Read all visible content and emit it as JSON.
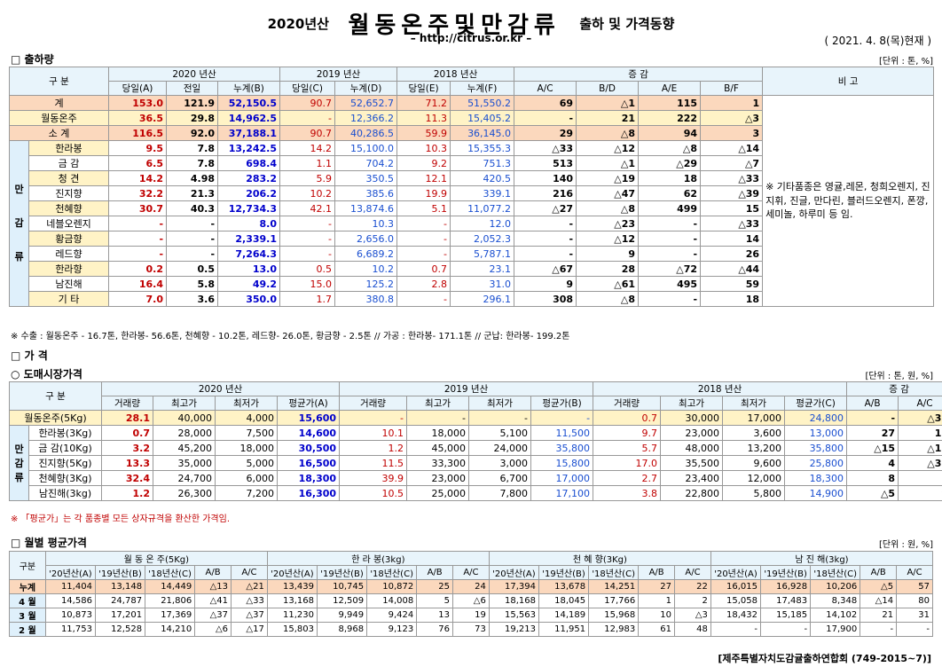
{
  "header": {
    "year": "2020년산",
    "title": "월동온주및만감류",
    "subtitle": "출하 및 가격동향",
    "url": "– http://citrus.or.kr –",
    "date": "( 2021. 4. 8(목)현재 )"
  },
  "s1": {
    "title": "□ 출하량",
    "unit": "[단위 : 톤, %]",
    "h": {
      "gubun": "구 분",
      "y2020": "2020 년산",
      "y2019": "2019 년산",
      "y2018": "2018 년산",
      "inc": "증 감",
      "bigo": "비 고",
      "c": [
        "당일(A)",
        "전일",
        "누계(B)",
        "당일(C)",
        "누계(D)",
        "당일(E)",
        "누계(F)",
        "A/C",
        "B/D",
        "A/E",
        "B/F"
      ]
    },
    "rows": [
      [
        "계",
        "153.0",
        "121.9",
        "52,150.5",
        "90.7",
        "52,652.7",
        "71.2",
        "51,550.2",
        "69",
        "△1",
        "115",
        "1"
      ],
      [
        "월동온주",
        "36.5",
        "29.8",
        "14,962.5",
        "-",
        "12,366.2",
        "11.3",
        "15,405.2",
        "-",
        "21",
        "222",
        "△3"
      ],
      [
        "소 계",
        "116.5",
        "92.0",
        "37,188.1",
        "90.7",
        "40,286.5",
        "59.9",
        "36,145.0",
        "29",
        "△8",
        "94",
        "3"
      ],
      [
        "한라봉",
        "9.5",
        "7.8",
        "13,242.5",
        "14.2",
        "15,100.0",
        "10.3",
        "15,355.3",
        "△33",
        "△12",
        "△8",
        "△14"
      ],
      [
        "금 감",
        "6.5",
        "7.8",
        "698.4",
        "1.1",
        "704.2",
        "9.2",
        "751.3",
        "513",
        "△1",
        "△29",
        "△7"
      ],
      [
        "청 견",
        "14.2",
        "4.98",
        "283.2",
        "5.9",
        "350.5",
        "12.1",
        "420.5",
        "140",
        "△19",
        "18",
        "△33"
      ],
      [
        "진지향",
        "32.2",
        "21.3",
        "206.2",
        "10.2",
        "385.6",
        "19.9",
        "339.1",
        "216",
        "△47",
        "62",
        "△39"
      ],
      [
        "천혜향",
        "30.7",
        "40.3",
        "12,734.3",
        "42.1",
        "13,874.6",
        "5.1",
        "11,077.2",
        "△27",
        "△8",
        "499",
        "15"
      ],
      [
        "네블오렌지",
        "-",
        "-",
        "8.0",
        "-",
        "10.3",
        "-",
        "12.0",
        "-",
        "△23",
        "-",
        "△33"
      ],
      [
        "황금향",
        "-",
        "-",
        "2,339.1",
        "-",
        "2,656.0",
        "-",
        "2,052.3",
        "-",
        "△12",
        "-",
        "14"
      ],
      [
        "레드향",
        "-",
        "-",
        "7,264.3",
        "-",
        "6,689.2",
        "-",
        "5,787.1",
        "-",
        "9",
        "-",
        "26"
      ],
      [
        "한라향",
        "0.2",
        "0.5",
        "13.0",
        "0.5",
        "10.2",
        "0.7",
        "23.1",
        "△67",
        "28",
        "△72",
        "△44"
      ],
      [
        "남진해",
        "16.4",
        "5.8",
        "49.2",
        "15.0",
        "125.2",
        "2.8",
        "31.0",
        "9",
        "△61",
        "495",
        "59"
      ],
      [
        "기 타",
        "7.0",
        "3.6",
        "350.0",
        "1.7",
        "380.8",
        "-",
        "296.1",
        "308",
        "△8",
        "-",
        "18"
      ]
    ],
    "group": [
      "만",
      "감",
      "류"
    ],
    "remark": "※ 기타품종은 영귤,레몬, 청희오렌지, 진지휘, 진글, 만다린, 블러드오렌지, 폰깡,세미놀, 하루미 등 임.",
    "note": "※ 수출 : 월동온주 - 16.7톤, 한라봉- 56.6톤, 천혜향 - 10.2톤, 레드향- 26.0톤, 황금향 - 2.5톤  // 가공 : 한라봉- 171.1톤 // 군납: 한라봉- 199.2톤"
  },
  "s2": {
    "title1": "□ 가   격",
    "title2": "○ 도매시장가격",
    "unit": "[단위 : 톤, 원, %]",
    "h": {
      "gubun": "구 분",
      "y2020": "2020 년산",
      "y2019": "2019 년산",
      "y2018": "2018 년산",
      "inc": "증 감",
      "c": [
        "거래량",
        "최고가",
        "최저가",
        "평균가(A)",
        "거래량",
        "최고가",
        "최저가",
        "평균가(B)",
        "거래량",
        "최고가",
        "최저가",
        "평균가(C)",
        "A/B",
        "A/C"
      ]
    },
    "rows": [
      [
        "월동온주(5Kg)",
        "28.1",
        "40,000",
        "4,000",
        "15,600",
        "-",
        "-",
        "-",
        "-",
        "0.7",
        "30,000",
        "17,000",
        "24,800",
        "-",
        "△37"
      ],
      [
        "한라봉(3Kg)",
        "0.7",
        "28,000",
        "7,500",
        "14,600",
        "10.1",
        "18,000",
        "5,100",
        "11,500",
        "9.7",
        "23,000",
        "3,600",
        "13,000",
        "27",
        "12"
      ],
      [
        "금 감(10Kg)",
        "3.2",
        "45,200",
        "18,000",
        "30,500",
        "1.2",
        "45,000",
        "24,000",
        "35,800",
        "5.7",
        "48,000",
        "13,200",
        "35,800",
        "△15",
        "△15"
      ],
      [
        "진지향(5Kg)",
        "13.3",
        "35,000",
        "5,000",
        "16,500",
        "11.5",
        "33,300",
        "3,000",
        "15,800",
        "17.0",
        "35,500",
        "9,600",
        "25,800",
        "4",
        "△36"
      ],
      [
        "천혜향(3Kg)",
        "32.4",
        "24,700",
        "6,000",
        "18,300",
        "39.9",
        "23,000",
        "6,700",
        "17,000",
        "2.7",
        "23,400",
        "12,000",
        "18,300",
        "8",
        "-"
      ],
      [
        "남진해(3kg)",
        "1.2",
        "26,300",
        "7,200",
        "16,300",
        "10.5",
        "25,000",
        "7,800",
        "17,100",
        "3.8",
        "22,800",
        "5,800",
        "14,900",
        "△5",
        "9"
      ]
    ],
    "group": [
      "만",
      "감",
      "류"
    ],
    "note": "※ 「평균가」는 각 품종별 모든 상자규격을 환산한 가격임."
  },
  "s3": {
    "title": "□ 월별 평균가격",
    "unit": "[단위 : 원, %]",
    "h": {
      "gubun": "구분",
      "g": [
        "월 동 온 주(5Kg)",
        "한 라 봉(3kg)",
        "천 혜 향(3Kg)",
        "남 진 해(3kg)"
      ],
      "c": [
        "'20년산(A)",
        "'19년산(B)",
        "'18년산(C)",
        "A/B",
        "A/C"
      ]
    },
    "rows": [
      [
        "누계",
        "11,404",
        "13,148",
        "14,449",
        "△13",
        "△21",
        "13,439",
        "10,745",
        "10,872",
        "25",
        "24",
        "17,394",
        "13,678",
        "14,251",
        "27",
        "22",
        "16,015",
        "16,928",
        "10,206",
        "△5",
        "57"
      ],
      [
        "4 월",
        "14,586",
        "24,787",
        "21,806",
        "△41",
        "△33",
        "13,168",
        "12,509",
        "14,008",
        "5",
        "△6",
        "18,168",
        "18,045",
        "17,766",
        "1",
        "2",
        "15,058",
        "17,483",
        "8,348",
        "△14",
        "80"
      ],
      [
        "3 월",
        "10,873",
        "17,201",
        "17,369",
        "△37",
        "△37",
        "11,230",
        "9,949",
        "9,424",
        "13",
        "19",
        "15,563",
        "14,189",
        "15,968",
        "10",
        "△3",
        "18,432",
        "15,185",
        "14,102",
        "21",
        "31"
      ],
      [
        "2 월",
        "11,753",
        "12,528",
        "14,210",
        "△6",
        "△17",
        "15,803",
        "8,968",
        "9,123",
        "76",
        "73",
        "19,213",
        "11,951",
        "12,983",
        "61",
        "48",
        "-",
        "-",
        "17,900",
        "-",
        "-"
      ]
    ]
  },
  "footer": "[제주특별자치도감귤출하연합회 (749-2015~7)]"
}
